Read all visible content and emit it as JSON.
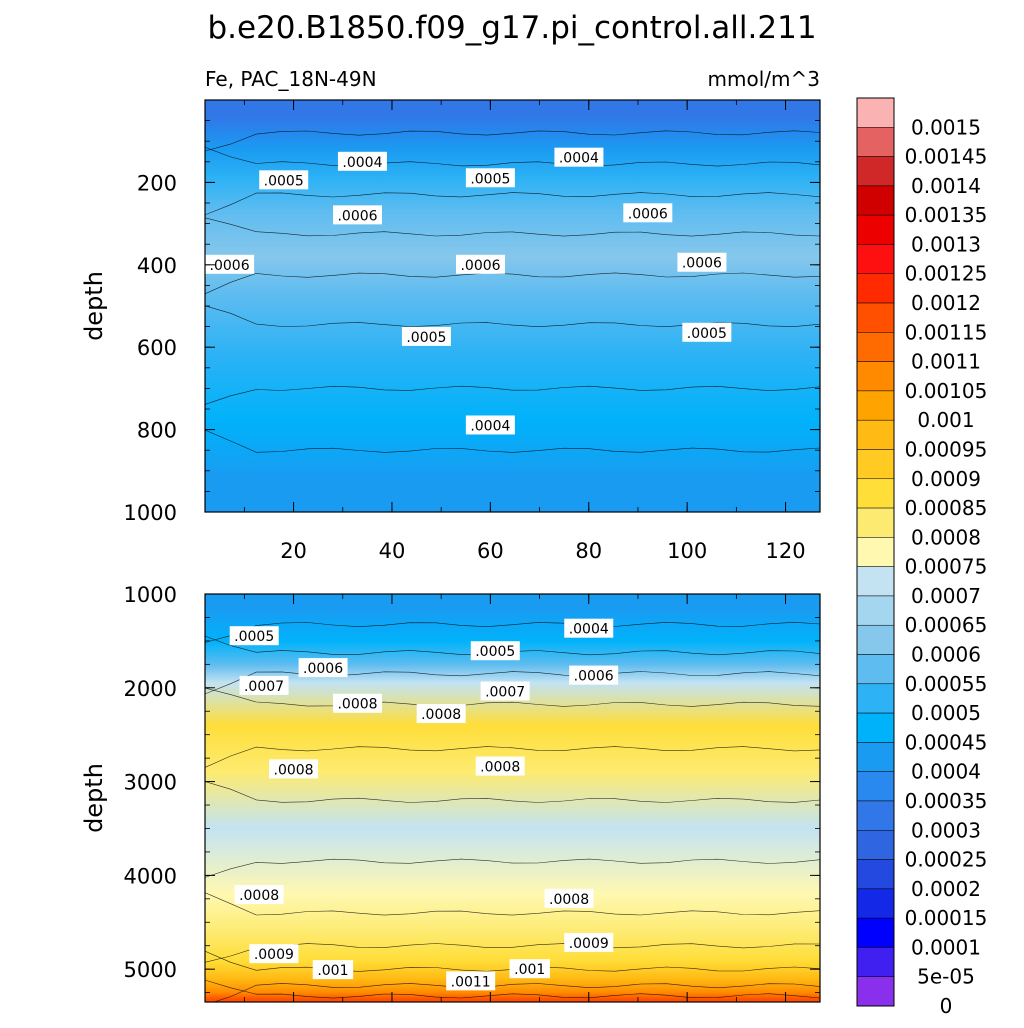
{
  "chart_data": {
    "type": "heatmap",
    "title": "b.e20.B1850.f09_g17.pi_control.all.211",
    "variable_label": "Fe, PAC_18N-49N",
    "units": "mmol/m^3",
    "ylabel": "depth",
    "xticks": [
      "20",
      "40",
      "60",
      "80",
      "100",
      "120"
    ],
    "xlim": [
      2,
      127
    ],
    "colorbar_labels": [
      "0.0015",
      "0.00145",
      "0.0014",
      "0.00135",
      "0.0013",
      "0.00125",
      "0.0012",
      "0.00115",
      "0.0011",
      "0.00105",
      "0.001",
      "0.00095",
      "0.0009",
      "0.00085",
      "0.0008",
      "0.00075",
      "0.0007",
      "0.00065",
      "0.0006",
      "0.00055",
      "0.0005",
      "0.00045",
      "0.0004",
      "0.00035",
      "0.0003",
      "0.00025",
      "0.0002",
      "0.00015",
      "0.0001",
      "5e-05",
      "0"
    ],
    "colorbar_colors": [
      "#fbb2b2",
      "#e56262",
      "#d02828",
      "#d10000",
      "#ec0000",
      "#ff1010",
      "#ff2a00",
      "#ff5000",
      "#ff6b00",
      "#ff8a00",
      "#ffa300",
      "#ffbb14",
      "#ffcb22",
      "#ffde3a",
      "#fdeb71",
      "#fff8b1",
      "#c3e3f2",
      "#a5d6ef",
      "#86c7ec",
      "#5ebcf0",
      "#2cb2f5",
      "#00b2fa",
      "#1a9bf2",
      "#2a89ee",
      "#3177e8",
      "#3065e1",
      "#2449e0",
      "#1429e8",
      "#0000ff",
      "#3f20f0",
      "#8a30ed"
    ],
    "panels": [
      {
        "id": "upper",
        "yticks": [
          "200",
          "400",
          "600",
          "800",
          "1000"
        ],
        "ylim": [
          1000,
          0
        ],
        "bands": [
          {
            "depth": 40,
            "value": 0.0003
          },
          {
            "depth": 120,
            "value": 0.0004
          },
          {
            "depth": 190,
            "value": 0.0005
          },
          {
            "depth": 270,
            "value": 0.00055
          },
          {
            "depth": 380,
            "value": 0.0006
          },
          {
            "depth": 470,
            "value": 0.00055
          },
          {
            "depth": 620,
            "value": 0.0005
          },
          {
            "depth": 780,
            "value": 0.00045
          },
          {
            "depth": 920,
            "value": 0.0004
          }
        ],
        "labels": [
          {
            "text": ".0004",
            "x": 34,
            "depth": 150
          },
          {
            "text": ".0004",
            "x": 78,
            "depth": 140
          },
          {
            "text": ".0005",
            "x": 18,
            "depth": 195
          },
          {
            "text": ".0005",
            "x": 60,
            "depth": 190
          },
          {
            "text": ".0006",
            "x": 33,
            "depth": 280
          },
          {
            "text": ".0006",
            "x": 92,
            "depth": 275
          },
          {
            "text": ".0006",
            "x": 7,
            "depth": 400
          },
          {
            "text": ".0006",
            "x": 58,
            "depth": 400
          },
          {
            "text": ".0006",
            "x": 103,
            "depth": 395
          },
          {
            "text": ".0005",
            "x": 47,
            "depth": 575
          },
          {
            "text": ".0005",
            "x": 104,
            "depth": 565
          },
          {
            "text": ".0004",
            "x": 60,
            "depth": 790
          }
        ]
      },
      {
        "id": "lower",
        "yticks": [
          "1000",
          "2000",
          "3000",
          "4000",
          "5000"
        ],
        "ylim": [
          5350,
          1000
        ],
        "bands": [
          {
            "depth": 1150,
            "value": 0.0004
          },
          {
            "depth": 1500,
            "value": 0.00045
          },
          {
            "depth": 1750,
            "value": 0.00055
          },
          {
            "depth": 1950,
            "value": 0.0007
          },
          {
            "depth": 2400,
            "value": 0.00085
          },
          {
            "depth": 2900,
            "value": 0.0008
          },
          {
            "depth": 3500,
            "value": 0.0007
          },
          {
            "depth": 4200,
            "value": 0.00075
          },
          {
            "depth": 4600,
            "value": 0.0008
          },
          {
            "depth": 4900,
            "value": 0.00085
          },
          {
            "depth": 5100,
            "value": 0.00095
          },
          {
            "depth": 5250,
            "value": 0.00105
          },
          {
            "depth": 5320,
            "value": 0.00115
          }
        ],
        "labels": [
          {
            "text": ".0005",
            "x": 12,
            "depth": 1450
          },
          {
            "text": ".0004",
            "x": 80,
            "depth": 1370
          },
          {
            "text": ".0005",
            "x": 61,
            "depth": 1610
          },
          {
            "text": ".0006",
            "x": 26,
            "depth": 1790
          },
          {
            "text": ".0006",
            "x": 81,
            "depth": 1870
          },
          {
            "text": ".0007",
            "x": 14,
            "depth": 1980
          },
          {
            "text": ".0007",
            "x": 63,
            "depth": 2040
          },
          {
            "text": ".0008",
            "x": 33,
            "depth": 2170
          },
          {
            "text": ".0008",
            "x": 50,
            "depth": 2280
          },
          {
            "text": ".0008",
            "x": 20,
            "depth": 2870
          },
          {
            "text": ".0008",
            "x": 62,
            "depth": 2840
          },
          {
            "text": ".0008",
            "x": 13,
            "depth": 4210
          },
          {
            "text": ".0008",
            "x": 76,
            "depth": 4250
          },
          {
            "text": ".0009",
            "x": 16,
            "depth": 4840
          },
          {
            "text": ".0009",
            "x": 80,
            "depth": 4720
          },
          {
            "text": ".001",
            "x": 28,
            "depth": 5010
          },
          {
            "text": ".001",
            "x": 68,
            "depth": 5000
          },
          {
            "text": ".0011",
            "x": 56,
            "depth": 5130
          }
        ]
      }
    ]
  }
}
